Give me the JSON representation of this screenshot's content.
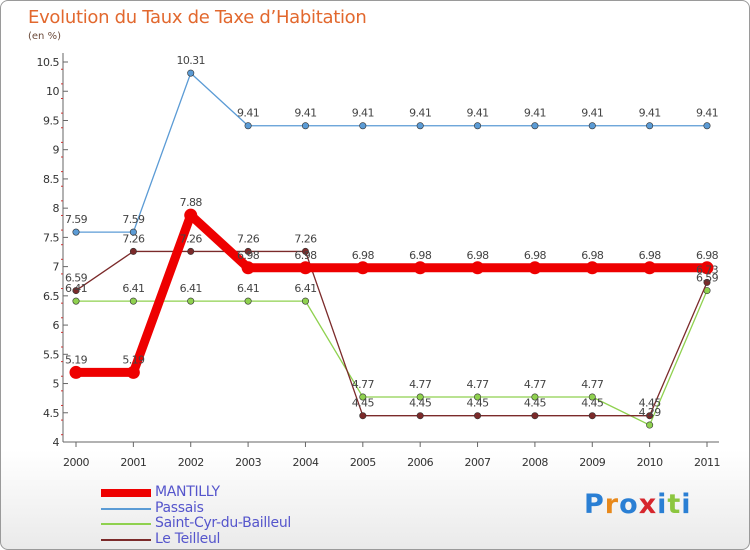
{
  "header": {
    "title": "Evolution du Taux de Taxe d’Habitation",
    "subtitle": "(en %)"
  },
  "logo": {
    "text": "Proxiti",
    "colors": [
      "#2a7fd4",
      "#e8891b",
      "#2a7fd4",
      "#d6262d",
      "#2a7fd4",
      "#8cc63f",
      "#2a7fd4"
    ]
  },
  "chart_data": {
    "type": "line",
    "title": "Evolution du Taux de Taxe d’Habitation",
    "subtitle": "(en %)",
    "x": [
      "2000",
      "2001",
      "2002",
      "2003",
      "2004",
      "2005",
      "2006",
      "2007",
      "2008",
      "2009",
      "2010",
      "2011"
    ],
    "ylim": [
      4,
      10.5
    ],
    "yticks": [
      "4",
      "4.5",
      "5",
      "5.5",
      "6",
      "6.5",
      "7",
      "7.5",
      "8",
      "8.5",
      "9",
      "9.5",
      "10",
      "10.5"
    ],
    "grid": false,
    "legend_position": "bottom-left",
    "series": [
      {
        "name": "MANTILLY",
        "color": "#ee0000",
        "emphasis": true,
        "values": [
          5.19,
          5.19,
          7.88,
          6.98,
          6.98,
          6.98,
          6.98,
          6.98,
          6.98,
          6.98,
          6.98,
          6.98
        ],
        "labels": [
          "5.19",
          "5.19",
          "7.88",
          "6.98",
          "6.98",
          "6.98",
          "6.98",
          "6.98",
          "6.98",
          "6.98",
          "6.98",
          "6.98"
        ]
      },
      {
        "name": "Passais",
        "color": "#5b9bd5",
        "values": [
          7.59,
          7.59,
          10.31,
          9.41,
          9.41,
          9.41,
          9.41,
          9.41,
          9.41,
          9.41,
          9.41,
          9.41
        ],
        "labels": [
          "7.59",
          "7.59",
          "10.31",
          "9.41",
          "9.41",
          "9.41",
          "9.41",
          "9.41",
          "9.41",
          "9.41",
          "9.41",
          "9.41"
        ]
      },
      {
        "name": "Saint-Cyr-du-Bailleul",
        "color": "#8fd14f",
        "values": [
          6.41,
          6.41,
          6.41,
          6.41,
          6.41,
          4.77,
          4.77,
          4.77,
          4.77,
          4.77,
          4.29,
          6.59
        ],
        "labels": [
          "6.41",
          "6.41",
          "6.41",
          "6.41",
          "6.41",
          "4.77",
          "4.77",
          "4.77",
          "4.77",
          "4.77",
          "4.29",
          "6.59"
        ]
      },
      {
        "name": "Le Teilleul",
        "color": "#7b2a2a",
        "values": [
          6.59,
          7.26,
          7.26,
          7.26,
          7.26,
          4.45,
          4.45,
          4.45,
          4.45,
          4.45,
          4.45,
          6.73
        ],
        "labels": [
          "6.59",
          "7.26",
          "7.26",
          "7.26",
          "7.26",
          "4.45",
          "4.45",
          "4.45",
          "4.45",
          "4.45",
          "4.45",
          "6.73"
        ]
      }
    ]
  }
}
